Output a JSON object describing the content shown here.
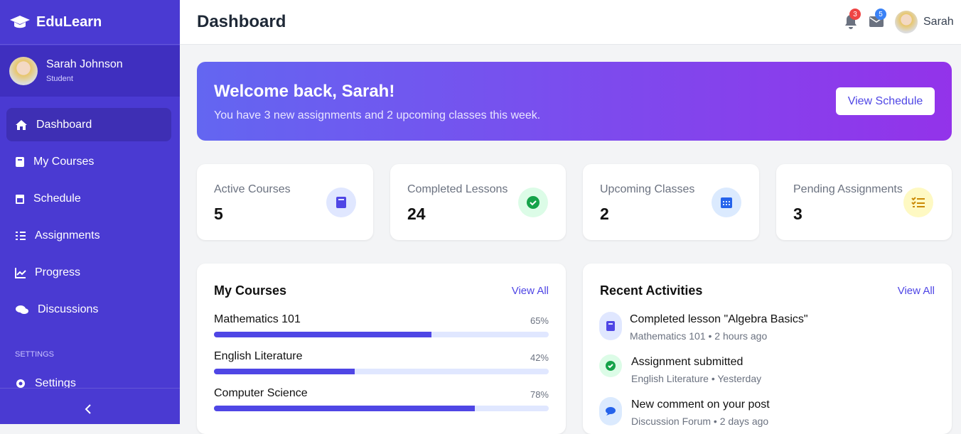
{
  "sidebar": {
    "brand": "EduLearn",
    "user": {
      "name": "Sarah Johnson",
      "role": "Student"
    },
    "nav": [
      "Dashboard",
      "My Courses",
      "Schedule",
      "Assignments",
      "Progress",
      "Discussions"
    ],
    "section_label": "SETTINGS",
    "settings_nav": [
      "Settings"
    ]
  },
  "header": {
    "title": "Dashboard",
    "notifications": 3,
    "messages": 5,
    "user": "Sarah"
  },
  "banner": {
    "title": "Welcome back, Sarah!",
    "text": "You have 3 new assignments and 2 upcoming classes this week.",
    "button": "View Schedule"
  },
  "stats": [
    {
      "label": "Active Courses",
      "value": 5
    },
    {
      "label": "Completed Lessons",
      "value": 24
    },
    {
      "label": "Upcoming Classes",
      "value": 2
    },
    {
      "label": "Pending Assignments",
      "value": 3
    }
  ],
  "courses": {
    "title": "My Courses",
    "link": "View All",
    "items": [
      {
        "name": "Mathematics 101",
        "progress": 65,
        "progress_label": "65%"
      },
      {
        "name": "English Literature",
        "progress": 42,
        "progress_label": "42%"
      },
      {
        "name": "Computer Science",
        "progress": 78,
        "progress_label": "78%"
      }
    ]
  },
  "activities": {
    "title": "Recent Activities",
    "link": "View All",
    "items": [
      {
        "title": "Completed lesson \"Algebra Basics\"",
        "meta": "Mathematics 101 • 2 hours ago"
      },
      {
        "title": "Assignment submitted",
        "meta": "English Literature • Yesterday"
      },
      {
        "title": "New comment on your post",
        "meta": "Discussion Forum • 2 days ago"
      }
    ]
  }
}
